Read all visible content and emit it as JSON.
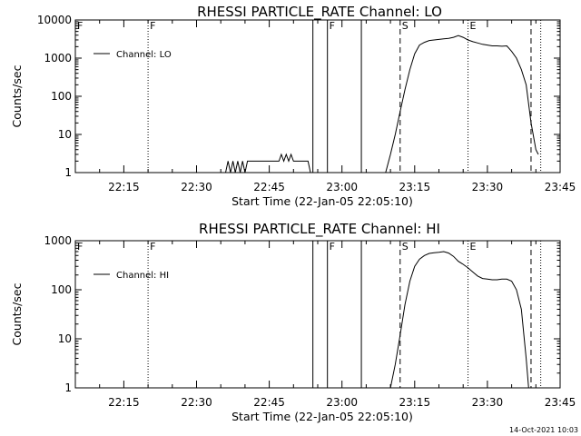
{
  "timestamp": "14-Oct-2021 10:03",
  "chart_data": [
    {
      "type": "line",
      "id": "lo",
      "title": "RHESSI PARTICLE_RATE Channel: LO",
      "xlabel": "Start Time (22-Jan-05 22:05:10)",
      "ylabel": "Counts/sec",
      "yscale": "log",
      "xlim": [
        "22:05",
        "23:45"
      ],
      "ylim": [
        1,
        10000
      ],
      "xticks": [
        "22:15",
        "22:30",
        "22:45",
        "23:00",
        "23:15",
        "23:30",
        "23:45"
      ],
      "yticks": [
        {
          "value": 1,
          "label": "1"
        },
        {
          "value": 10,
          "label": "10"
        },
        {
          "value": 100,
          "label": "100"
        },
        {
          "value": 1000,
          "label": "1000"
        },
        {
          "value": 10000,
          "label": "10000"
        }
      ],
      "grid": false,
      "legend": {
        "position": "top-left",
        "label": "Channel: LO"
      },
      "markers": [
        {
          "label": "F",
          "time": "22:05",
          "style": "solid"
        },
        {
          "label": "F",
          "time": "22:20",
          "style": "dotted"
        },
        {
          "label": "",
          "time": "22:54",
          "style": "solid"
        },
        {
          "label": "F",
          "time": "22:57",
          "style": "solid"
        },
        {
          "label": "",
          "time": "23:04",
          "style": "solid"
        },
        {
          "label": "S",
          "time": "23:12",
          "style": "dashed"
        },
        {
          "label": "E",
          "time": "23:26",
          "style": "dotted"
        },
        {
          "label": "",
          "time": "23:39",
          "style": "dashed"
        },
        {
          "label": "",
          "time": "23:41",
          "style": "dotted"
        }
      ],
      "series": [
        {
          "segments": [
            {
              "x": [
                "22:36",
                "22:36.5",
                "22:37",
                "22:37.5",
                "22:38",
                "22:38.5",
                "22:39",
                "22:39.5",
                "22:40",
                "22:40.5",
                "22:41",
                "22:42",
                "22:43",
                "22:44",
                "22:45",
                "22:46",
                "22:47",
                "22:47.5",
                "22:48",
                "22:48.5",
                "22:49",
                "22:49.5",
                "22:50",
                "22:51",
                "22:52",
                "22:53",
                "22:53.5"
              ],
              "y": [
                1,
                2,
                1,
                2,
                1,
                2,
                1,
                2,
                1,
                2,
                2,
                2,
                2,
                2,
                2,
                2,
                2,
                3,
                2,
                3,
                2,
                3,
                2,
                2,
                2,
                2,
                1
              ]
            },
            {
              "x": [
                "23:09",
                "23:10",
                "23:11",
                "23:12",
                "23:13",
                "23:14",
                "23:15",
                "23:16",
                "23:17",
                "23:18",
                "23:19",
                "23:20",
                "23:21",
                "23:22",
                "23:23",
                "23:24",
                "23:25",
                "23:26",
                "23:27",
                "23:28",
                "23:29",
                "23:30",
                "23:31",
                "23:32",
                "23:33",
                "23:34",
                "23:35",
                "23:36",
                "23:37",
                "23:38",
                "23:39",
                "23:40",
                "23:40.5"
              ],
              "y": [
                1,
                3,
                10,
                40,
                150,
                500,
                1300,
                2200,
                2600,
                2900,
                3000,
                3100,
                3200,
                3300,
                3500,
                3900,
                3500,
                3000,
                2700,
                2500,
                2300,
                2200,
                2100,
                2100,
                2050,
                2100,
                1500,
                1000,
                500,
                200,
                20,
                4,
                3
              ]
            }
          ]
        }
      ]
    },
    {
      "type": "line",
      "id": "hi",
      "title": "RHESSI PARTICLE_RATE Channel: HI",
      "xlabel": "Start Time (22-Jan-05 22:05:10)",
      "ylabel": "Counts/sec",
      "yscale": "log",
      "xlim": [
        "22:05",
        "23:45"
      ],
      "ylim": [
        1,
        1000
      ],
      "xticks": [
        "22:15",
        "22:30",
        "22:45",
        "23:00",
        "23:15",
        "23:30",
        "23:45"
      ],
      "yticks": [
        {
          "value": 1,
          "label": "1"
        },
        {
          "value": 10,
          "label": "10"
        },
        {
          "value": 100,
          "label": "100"
        },
        {
          "value": 1000,
          "label": "1000"
        }
      ],
      "grid": false,
      "legend": {
        "position": "top-left",
        "label": "Channel: HI"
      },
      "markers": [
        {
          "label": "F",
          "time": "22:05",
          "style": "solid"
        },
        {
          "label": "F",
          "time": "22:20",
          "style": "dotted"
        },
        {
          "label": "",
          "time": "22:54",
          "style": "solid"
        },
        {
          "label": "F",
          "time": "22:57",
          "style": "solid"
        },
        {
          "label": "",
          "time": "23:04",
          "style": "solid"
        },
        {
          "label": "S",
          "time": "23:12",
          "style": "dashed"
        },
        {
          "label": "E",
          "time": "23:26",
          "style": "dotted"
        },
        {
          "label": "",
          "time": "23:39",
          "style": "dashed"
        },
        {
          "label": "",
          "time": "23:41",
          "style": "dotted"
        }
      ],
      "series": [
        {
          "segments": [
            {
              "x": [
                "23:10",
                "23:11",
                "23:12",
                "23:13",
                "23:14",
                "23:15",
                "23:16",
                "23:17",
                "23:18",
                "23:19",
                "23:20",
                "23:21",
                "23:22",
                "23:23",
                "23:24",
                "23:25",
                "23:26",
                "23:27",
                "23:28",
                "23:29",
                "23:30",
                "23:31",
                "23:32",
                "23:33",
                "23:34",
                "23:35",
                "23:36",
                "23:37",
                "23:38",
                "23:38.5"
              ],
              "y": [
                1,
                3,
                12,
                50,
                150,
                300,
                420,
                500,
                550,
                570,
                580,
                600,
                560,
                480,
                380,
                330,
                280,
                230,
                190,
                170,
                165,
                160,
                160,
                165,
                165,
                150,
                100,
                40,
                4,
                1
              ]
            }
          ]
        }
      ]
    }
  ]
}
